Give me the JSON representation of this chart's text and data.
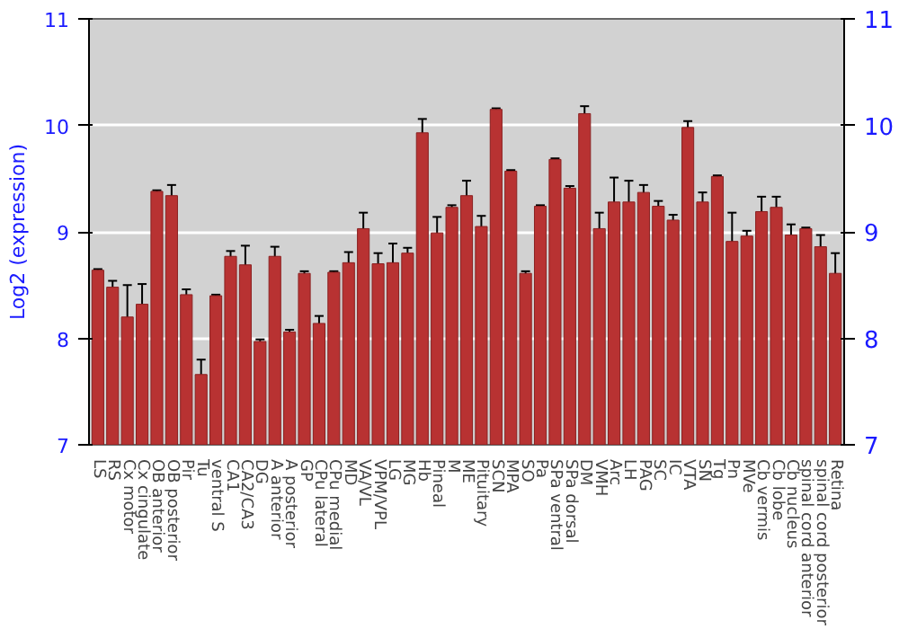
{
  "chart_data": {
    "type": "bar",
    "ylabel": "Log2 (expression)",
    "categories": [
      "LS",
      "RS",
      "Cx motor",
      "Cx cingulate",
      "OB anterior",
      "OB posterior",
      "Pir",
      "Tu",
      "ventral S",
      "CA1",
      "CA2/CA3",
      "DG",
      "A anterior",
      "A posterior",
      "GP",
      "CPu lateral",
      "CPu medial",
      "MD",
      "VA/VL",
      "VPM/VPL",
      "LG",
      "MG",
      "Hb",
      "Pineal",
      "M",
      "ME",
      "Pituitary",
      "SCN",
      "MPA",
      "SO",
      "Pa",
      "SPa ventral",
      "SPa dorsal",
      "DM",
      "VMH",
      "Arc",
      "LH",
      "PAG",
      "SC",
      "IC",
      "VTA",
      "SN",
      "Tg",
      "Pn",
      "MVe",
      "Cb vermis",
      "Cb lobe",
      "Cb nucleus",
      "spinal cord anterior",
      "spinal cord posterior",
      "Retina"
    ],
    "values": [
      8.64,
      8.48,
      8.2,
      8.32,
      9.38,
      9.34,
      8.41,
      7.66,
      8.4,
      8.77,
      8.69,
      7.97,
      8.77,
      8.06,
      8.61,
      8.14,
      8.62,
      8.71,
      9.03,
      8.7,
      8.71,
      8.8,
      9.93,
      8.99,
      9.23,
      9.34,
      9.05,
      10.15,
      9.57,
      8.61,
      9.24,
      9.68,
      9.41,
      10.11,
      9.03,
      9.28,
      9.28,
      9.37,
      9.24,
      9.11,
      9.98,
      9.28,
      9.52,
      8.91,
      8.96,
      9.19,
      9.23,
      8.97,
      9.03,
      8.86,
      8.61
    ],
    "errors": [
      0.01,
      0.06,
      0.3,
      0.19,
      0.01,
      0.1,
      0.05,
      0.14,
      0.01,
      0.05,
      0.18,
      0.02,
      0.09,
      0.02,
      0.02,
      0.07,
      0.01,
      0.1,
      0.15,
      0.1,
      0.18,
      0.05,
      0.13,
      0.15,
      0.02,
      0.14,
      0.1,
      0.01,
      0.01,
      0.02,
      0.01,
      0.01,
      0.02,
      0.07,
      0.15,
      0.23,
      0.2,
      0.07,
      0.05,
      0.05,
      0.06,
      0.09,
      0.01,
      0.27,
      0.05,
      0.14,
      0.1,
      0.1,
      0.01,
      0.11,
      0.19
    ],
    "color": "#b83232",
    "ylim": [
      7,
      11
    ],
    "yticks": [
      7,
      8,
      9,
      10,
      11
    ],
    "y2lim": [
      7,
      11
    ],
    "y2ticks": [
      7,
      8,
      9,
      10,
      11
    ],
    "grid": "y"
  }
}
